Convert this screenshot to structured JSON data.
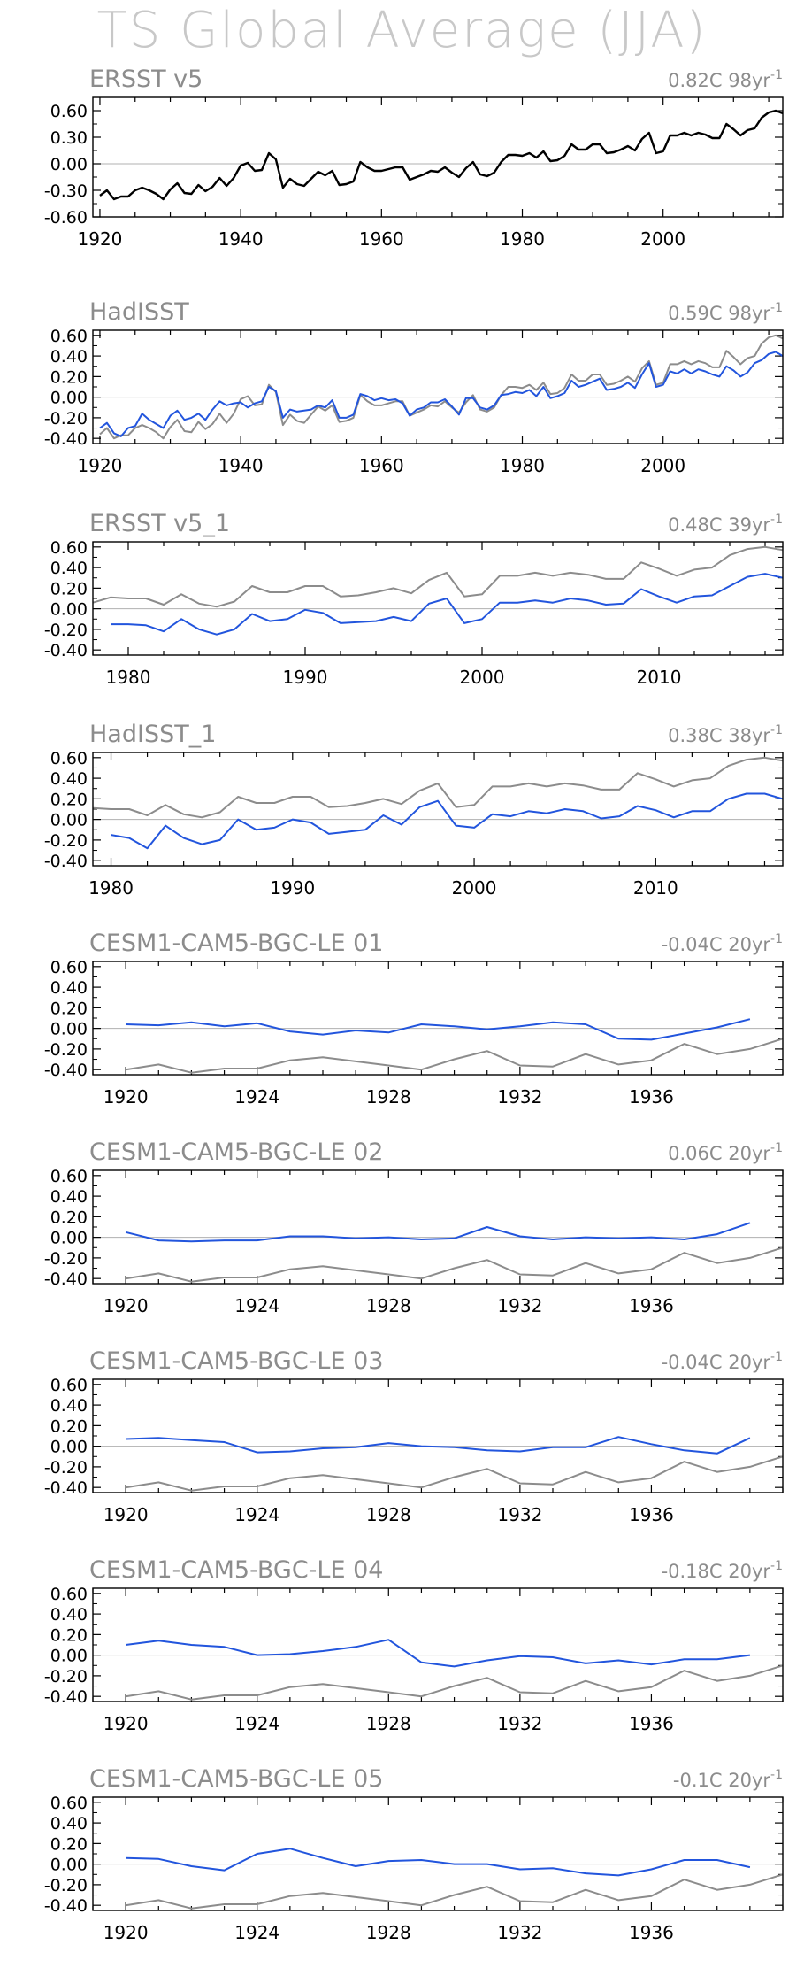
{
  "page": {
    "title": "TS Global Average (JJA)"
  },
  "colors": {
    "observed": "#000000",
    "reference": "#8c8c8c",
    "model": "#2255dd",
    "text": "#8c8c8c",
    "axis": "#000000"
  },
  "chart_data": [
    {
      "type": "line",
      "title": "ERSST v5",
      "trend_label": "0.82C 98yr",
      "trend_exponent": "-1",
      "yticks": [
        "0.60",
        "0.30",
        "0.00",
        "-0.30",
        "-0.60"
      ],
      "ylim": [
        -0.6,
        0.75
      ],
      "xlim": [
        1919,
        2017
      ],
      "xticks": [
        1920,
        1940,
        1960,
        1980,
        2000
      ],
      "series": [
        {
          "role": "observed",
          "x_start": 1920,
          "values": [
            -0.36,
            -0.3,
            -0.4,
            -0.37,
            -0.37,
            -0.3,
            -0.27,
            -0.3,
            -0.34,
            -0.4,
            -0.29,
            -0.22,
            -0.33,
            -0.34,
            -0.24,
            -0.31,
            -0.26,
            -0.16,
            -0.25,
            -0.16,
            -0.02,
            0.01,
            -0.08,
            -0.07,
            0.12,
            0.05,
            -0.27,
            -0.17,
            -0.23,
            -0.25,
            -0.17,
            -0.09,
            -0.13,
            -0.08,
            -0.24,
            -0.23,
            -0.2,
            0.02,
            -0.04,
            -0.08,
            -0.08,
            -0.06,
            -0.04,
            -0.04,
            -0.18,
            -0.15,
            -0.12,
            -0.08,
            -0.09,
            -0.04,
            -0.1,
            -0.15,
            -0.05,
            0.02,
            -0.12,
            -0.14,
            -0.1,
            0.02,
            0.1,
            0.1,
            0.09,
            0.12,
            0.07,
            0.14,
            0.03,
            0.04,
            0.09,
            0.22,
            0.16,
            0.16,
            0.22,
            0.22,
            0.12,
            0.13,
            0.16,
            0.2,
            0.15,
            0.28,
            0.35,
            0.12,
            0.14,
            0.32,
            0.32,
            0.35,
            0.32,
            0.35,
            0.33,
            0.29,
            0.29,
            0.45,
            0.39,
            0.32,
            0.38,
            0.4,
            0.52,
            0.58,
            0.6,
            0.57
          ]
        }
      ]
    },
    {
      "type": "line",
      "title": "HadISST",
      "trend_label": "0.59C 98yr",
      "trend_exponent": "-1",
      "yticks": [
        "0.60",
        "0.40",
        "0.20",
        "0.00",
        "-0.20",
        "-0.40"
      ],
      "ylim": [
        -0.45,
        0.65
      ],
      "xlim": [
        1919,
        2017
      ],
      "xticks": [
        1920,
        1940,
        1960,
        1980,
        2000
      ],
      "series": [
        {
          "role": "reference",
          "x_start": 1920,
          "values": [
            -0.36,
            -0.3,
            -0.4,
            -0.37,
            -0.37,
            -0.3,
            -0.27,
            -0.3,
            -0.34,
            -0.4,
            -0.29,
            -0.22,
            -0.33,
            -0.34,
            -0.24,
            -0.31,
            -0.26,
            -0.16,
            -0.25,
            -0.16,
            -0.02,
            0.01,
            -0.08,
            -0.07,
            0.12,
            0.05,
            -0.27,
            -0.17,
            -0.23,
            -0.25,
            -0.17,
            -0.09,
            -0.13,
            -0.08,
            -0.24,
            -0.23,
            -0.2,
            0.02,
            -0.04,
            -0.08,
            -0.08,
            -0.06,
            -0.04,
            -0.04,
            -0.18,
            -0.15,
            -0.12,
            -0.08,
            -0.09,
            -0.04,
            -0.1,
            -0.15,
            -0.05,
            0.02,
            -0.12,
            -0.14,
            -0.1,
            0.02,
            0.1,
            0.1,
            0.09,
            0.12,
            0.07,
            0.14,
            0.03,
            0.04,
            0.09,
            0.22,
            0.16,
            0.16,
            0.22,
            0.22,
            0.12,
            0.13,
            0.16,
            0.2,
            0.15,
            0.28,
            0.35,
            0.12,
            0.14,
            0.32,
            0.32,
            0.35,
            0.32,
            0.35,
            0.33,
            0.29,
            0.29,
            0.45,
            0.39,
            0.32,
            0.38,
            0.4,
            0.52,
            0.58,
            0.6,
            0.57
          ]
        },
        {
          "role": "model",
          "x_start": 1920,
          "values": [
            -0.3,
            -0.25,
            -0.35,
            -0.38,
            -0.3,
            -0.28,
            -0.16,
            -0.22,
            -0.26,
            -0.3,
            -0.18,
            -0.13,
            -0.22,
            -0.2,
            -0.16,
            -0.22,
            -0.12,
            -0.04,
            -0.08,
            -0.06,
            -0.05,
            -0.1,
            -0.06,
            -0.04,
            0.1,
            0.06,
            -0.2,
            -0.12,
            -0.14,
            -0.13,
            -0.12,
            -0.08,
            -0.1,
            -0.03,
            -0.2,
            -0.2,
            -0.17,
            0.03,
            0.01,
            -0.03,
            -0.01,
            -0.03,
            -0.02,
            -0.06,
            -0.18,
            -0.12,
            -0.1,
            -0.05,
            -0.05,
            -0.02,
            -0.09,
            -0.17,
            -0.01,
            -0.01,
            -0.1,
            -0.12,
            -0.08,
            0.02,
            0.03,
            0.05,
            0.04,
            0.07,
            0.01,
            0.1,
            -0.01,
            0.01,
            0.04,
            0.16,
            0.1,
            0.12,
            0.15,
            0.18,
            0.07,
            0.08,
            0.1,
            0.14,
            0.09,
            0.22,
            0.33,
            0.1,
            0.12,
            0.25,
            0.23,
            0.27,
            0.23,
            0.27,
            0.25,
            0.22,
            0.2,
            0.3,
            0.26,
            0.2,
            0.24,
            0.33,
            0.36,
            0.42,
            0.44,
            0.4
          ]
        }
      ]
    },
    {
      "type": "line",
      "title": "ERSST v5_1",
      "trend_label": "0.48C 39yr",
      "trend_exponent": "-1",
      "yticks": [
        "0.60",
        "0.40",
        "0.20",
        "0.00",
        "-0.20",
        "-0.40"
      ],
      "ylim": [
        -0.45,
        0.65
      ],
      "xlim": [
        1978,
        2017
      ],
      "xticks": [
        1980,
        1990,
        2000,
        2010
      ],
      "series": [
        {
          "role": "reference",
          "x_start": 1978,
          "values": [
            0.06,
            0.11,
            0.1,
            0.1,
            0.04,
            0.14,
            0.05,
            0.02,
            0.07,
            0.22,
            0.16,
            0.16,
            0.22,
            0.22,
            0.12,
            0.13,
            0.16,
            0.2,
            0.15,
            0.28,
            0.35,
            0.12,
            0.14,
            0.32,
            0.32,
            0.35,
            0.32,
            0.35,
            0.33,
            0.29,
            0.29,
            0.45,
            0.39,
            0.32,
            0.38,
            0.4,
            0.52,
            0.58,
            0.6,
            0.57
          ]
        },
        {
          "role": "model",
          "x_start": 1979,
          "values": [
            -0.15,
            -0.15,
            -0.16,
            -0.22,
            -0.1,
            -0.2,
            -0.25,
            -0.2,
            -0.05,
            -0.12,
            -0.1,
            -0.01,
            -0.04,
            -0.14,
            -0.13,
            -0.12,
            -0.08,
            -0.12,
            0.05,
            0.1,
            -0.14,
            -0.1,
            0.06,
            0.06,
            0.08,
            0.06,
            0.1,
            0.08,
            0.04,
            0.05,
            0.19,
            0.12,
            0.06,
            0.12,
            0.13,
            0.22,
            0.31,
            0.34,
            0.3
          ]
        }
      ]
    },
    {
      "type": "line",
      "title": "HadISST_1",
      "trend_label": "0.38C 38yr",
      "trend_exponent": "-1",
      "yticks": [
        "0.60",
        "0.40",
        "0.20",
        "0.00",
        "-0.20",
        "-0.40"
      ],
      "ylim": [
        -0.45,
        0.65
      ],
      "xlim": [
        1979,
        2017
      ],
      "xticks": [
        1980,
        1990,
        2000,
        2010
      ],
      "series": [
        {
          "role": "reference",
          "x_start": 1979,
          "values": [
            0.11,
            0.1,
            0.1,
            0.04,
            0.14,
            0.05,
            0.02,
            0.07,
            0.22,
            0.16,
            0.16,
            0.22,
            0.22,
            0.12,
            0.13,
            0.16,
            0.2,
            0.15,
            0.28,
            0.35,
            0.12,
            0.14,
            0.32,
            0.32,
            0.35,
            0.32,
            0.35,
            0.33,
            0.29,
            0.29,
            0.45,
            0.39,
            0.32,
            0.38,
            0.4,
            0.52,
            0.58,
            0.6,
            0.57
          ]
        },
        {
          "role": "model",
          "x_start": 1980,
          "values": [
            -0.15,
            -0.18,
            -0.28,
            -0.06,
            -0.18,
            -0.24,
            -0.2,
            0.0,
            -0.1,
            -0.08,
            0.0,
            -0.03,
            -0.14,
            -0.12,
            -0.1,
            0.04,
            -0.05,
            0.12,
            0.18,
            -0.06,
            -0.08,
            0.05,
            0.03,
            0.08,
            0.06,
            0.1,
            0.08,
            0.01,
            0.03,
            0.13,
            0.09,
            0.02,
            0.08,
            0.08,
            0.2,
            0.25,
            0.25,
            0.2
          ]
        }
      ]
    },
    {
      "type": "line",
      "title": "CESM1-CAM5-BGC-LE 01",
      "trend_label": "-0.04C 20yr",
      "trend_exponent": "-1",
      "yticks": [
        "0.60",
        "0.40",
        "0.20",
        "0.00",
        "-0.20",
        "-0.40"
      ],
      "ylim": [
        -0.45,
        0.65
      ],
      "xlim": [
        1919,
        1940
      ],
      "xticks": [
        1920,
        1924,
        1928,
        1932,
        1936
      ],
      "series": [
        {
          "role": "reference",
          "x_start": 1920,
          "values": [
            -0.4,
            -0.35,
            -0.43,
            -0.39,
            -0.39,
            -0.31,
            -0.28,
            -0.32,
            -0.36,
            -0.4,
            -0.3,
            -0.22,
            -0.36,
            -0.37,
            -0.25,
            -0.35,
            -0.31,
            -0.15,
            -0.25,
            -0.2,
            -0.1
          ]
        },
        {
          "role": "model",
          "x_start": 1920,
          "values": [
            0.04,
            0.03,
            0.06,
            0.02,
            0.05,
            -0.03,
            -0.06,
            -0.02,
            -0.04,
            0.04,
            0.02,
            -0.01,
            0.02,
            0.06,
            0.04,
            -0.1,
            -0.11,
            -0.05,
            0.01,
            0.09
          ]
        }
      ]
    },
    {
      "type": "line",
      "title": "CESM1-CAM5-BGC-LE 02",
      "trend_label": "0.06C 20yr",
      "trend_exponent": "-1",
      "yticks": [
        "0.60",
        "0.40",
        "0.20",
        "0.00",
        "-0.20",
        "-0.40"
      ],
      "ylim": [
        -0.45,
        0.65
      ],
      "xlim": [
        1919,
        1940
      ],
      "xticks": [
        1920,
        1924,
        1928,
        1932,
        1936
      ],
      "series": [
        {
          "role": "reference",
          "x_start": 1920,
          "values": [
            -0.4,
            -0.35,
            -0.43,
            -0.39,
            -0.39,
            -0.31,
            -0.28,
            -0.32,
            -0.36,
            -0.4,
            -0.3,
            -0.22,
            -0.36,
            -0.37,
            -0.25,
            -0.35,
            -0.31,
            -0.15,
            -0.25,
            -0.2,
            -0.1
          ]
        },
        {
          "role": "model",
          "x_start": 1920,
          "values": [
            0.05,
            -0.03,
            -0.04,
            -0.03,
            -0.03,
            0.01,
            0.01,
            -0.01,
            0.0,
            -0.02,
            -0.01,
            0.1,
            0.01,
            -0.02,
            0.0,
            -0.01,
            0.0,
            -0.02,
            0.03,
            0.14
          ]
        }
      ]
    },
    {
      "type": "line",
      "title": "CESM1-CAM5-BGC-LE 03",
      "trend_label": "-0.04C 20yr",
      "trend_exponent": "-1",
      "yticks": [
        "0.60",
        "0.40",
        "0.20",
        "0.00",
        "-0.20",
        "-0.40"
      ],
      "ylim": [
        -0.45,
        0.65
      ],
      "xlim": [
        1919,
        1940
      ],
      "xticks": [
        1920,
        1924,
        1928,
        1932,
        1936
      ],
      "series": [
        {
          "role": "reference",
          "x_start": 1920,
          "values": [
            -0.4,
            -0.35,
            -0.43,
            -0.39,
            -0.39,
            -0.31,
            -0.28,
            -0.32,
            -0.36,
            -0.4,
            -0.3,
            -0.22,
            -0.36,
            -0.37,
            -0.25,
            -0.35,
            -0.31,
            -0.15,
            -0.25,
            -0.2,
            -0.1
          ]
        },
        {
          "role": "model",
          "x_start": 1920,
          "values": [
            0.07,
            0.08,
            0.06,
            0.04,
            -0.06,
            -0.05,
            -0.02,
            -0.01,
            0.03,
            0.0,
            -0.01,
            -0.04,
            -0.05,
            -0.01,
            -0.01,
            0.09,
            0.02,
            -0.04,
            -0.07,
            0.08
          ]
        }
      ]
    },
    {
      "type": "line",
      "title": "CESM1-CAM5-BGC-LE 04",
      "trend_label": "-0.18C 20yr",
      "trend_exponent": "-1",
      "yticks": [
        "0.60",
        "0.40",
        "0.20",
        "0.00",
        "-0.20",
        "-0.40"
      ],
      "ylim": [
        -0.45,
        0.65
      ],
      "xlim": [
        1919,
        1940
      ],
      "xticks": [
        1920,
        1924,
        1928,
        1932,
        1936
      ],
      "series": [
        {
          "role": "reference",
          "x_start": 1920,
          "values": [
            -0.4,
            -0.35,
            -0.43,
            -0.39,
            -0.39,
            -0.31,
            -0.28,
            -0.32,
            -0.36,
            -0.4,
            -0.3,
            -0.22,
            -0.36,
            -0.37,
            -0.25,
            -0.35,
            -0.31,
            -0.15,
            -0.25,
            -0.2,
            -0.1
          ]
        },
        {
          "role": "model",
          "x_start": 1920,
          "values": [
            0.1,
            0.14,
            0.1,
            0.08,
            0.0,
            0.01,
            0.04,
            0.08,
            0.15,
            -0.07,
            -0.11,
            -0.05,
            -0.01,
            -0.02,
            -0.08,
            -0.05,
            -0.09,
            -0.04,
            -0.04,
            0.0
          ]
        }
      ]
    },
    {
      "type": "line",
      "title": "CESM1-CAM5-BGC-LE 05",
      "trend_label": "-0.1C 20yr",
      "trend_exponent": "-1",
      "yticks": [
        "0.60",
        "0.40",
        "0.20",
        "0.00",
        "-0.20",
        "-0.40"
      ],
      "ylim": [
        -0.45,
        0.65
      ],
      "xlim": [
        1919,
        1940
      ],
      "xticks": [
        1920,
        1924,
        1928,
        1932,
        1936
      ],
      "series": [
        {
          "role": "reference",
          "x_start": 1920,
          "values": [
            -0.4,
            -0.35,
            -0.43,
            -0.39,
            -0.39,
            -0.31,
            -0.28,
            -0.32,
            -0.36,
            -0.4,
            -0.3,
            -0.22,
            -0.36,
            -0.37,
            -0.25,
            -0.35,
            -0.31,
            -0.15,
            -0.25,
            -0.2,
            -0.1
          ]
        },
        {
          "role": "model",
          "x_start": 1920,
          "values": [
            0.06,
            0.05,
            -0.02,
            -0.06,
            0.1,
            0.15,
            0.06,
            -0.02,
            0.03,
            0.04,
            0.0,
            0.0,
            -0.05,
            -0.04,
            -0.09,
            -0.11,
            -0.05,
            0.04,
            0.04,
            -0.03
          ]
        }
      ]
    }
  ]
}
